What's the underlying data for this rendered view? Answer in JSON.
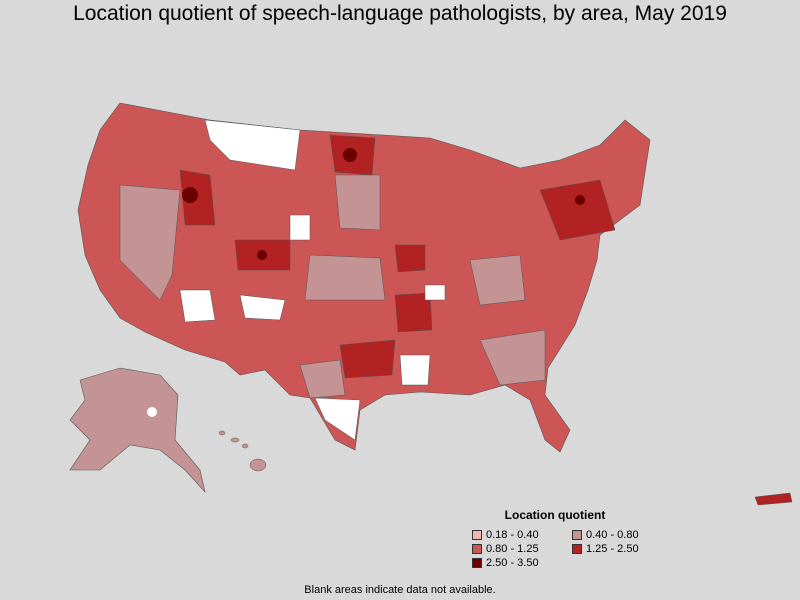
{
  "title": "Location quotient of speech-language pathologists, by area, May 2019",
  "legend": {
    "title": "Location quotient",
    "items": [
      {
        "label": "0.18 - 0.40",
        "color": "#f5b3b3"
      },
      {
        "label": "0.40 - 0.80",
        "color": "#c49494"
      },
      {
        "label": "0.80 - 1.25",
        "color": "#cc5555"
      },
      {
        "label": "1.25 - 2.50",
        "color": "#b22222"
      },
      {
        "label": "2.50 - 3.50",
        "color": "#6b0000"
      }
    ],
    "no_data_color": "#ffffff"
  },
  "footnote": "Blank areas indicate data not available.",
  "colors": {
    "background": "#d9d9d9",
    "border": "#555555"
  }
}
